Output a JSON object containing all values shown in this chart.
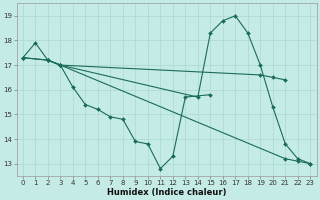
{
  "xlabel": "Humidex (Indice chaleur)",
  "bg_color": "#c5ebe7",
  "grid_color": "#aad8d2",
  "line_color": "#1a6b5a",
  "xlim": [
    -0.5,
    23.5
  ],
  "ylim": [
    12.5,
    19.5
  ],
  "xticks": [
    0,
    1,
    2,
    3,
    4,
    5,
    6,
    7,
    8,
    9,
    10,
    11,
    12,
    13,
    14,
    15,
    16,
    17,
    18,
    19,
    20,
    21,
    22,
    23
  ],
  "yticks": [
    13,
    14,
    15,
    16,
    17,
    18,
    19
  ],
  "series": [
    {
      "x": [
        0,
        1,
        2,
        3,
        4,
        5,
        6,
        7,
        8,
        9,
        10,
        11,
        12,
        13,
        15
      ],
      "y": [
        17.3,
        17.9,
        17.2,
        17.0,
        16.1,
        15.4,
        15.2,
        14.9,
        14.8,
        13.9,
        13.8,
        12.8,
        13.3,
        15.7,
        15.8
      ]
    },
    {
      "x": [
        0,
        2,
        3,
        21,
        22,
        23
      ],
      "y": [
        17.3,
        17.2,
        17.0,
        13.2,
        13.1,
        13.0
      ]
    },
    {
      "x": [
        0,
        2,
        3,
        19,
        20,
        21
      ],
      "y": [
        17.3,
        17.2,
        17.0,
        16.6,
        16.5,
        16.4
      ]
    },
    {
      "x": [
        2,
        3,
        14,
        15,
        16,
        17,
        18,
        19,
        20,
        21,
        22,
        23
      ],
      "y": [
        17.2,
        17.0,
        15.7,
        18.3,
        18.8,
        19.0,
        18.3,
        17.0,
        15.3,
        13.8,
        13.2,
        13.0
      ]
    }
  ]
}
